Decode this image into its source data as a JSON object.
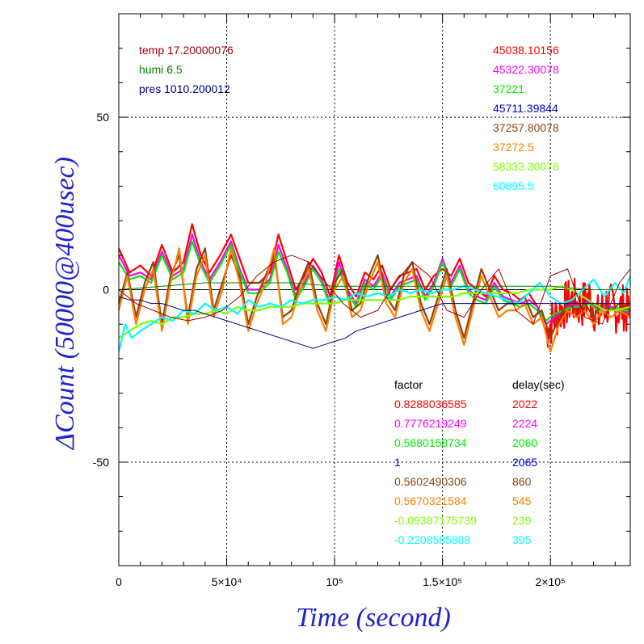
{
  "colors": {
    "red": "#ff0000",
    "magenta": "#ff00ff",
    "green": "#00ee00",
    "blue": "#0000cc",
    "brown": "#8b4513",
    "orange": "#ff7f00",
    "lime": "#7fff00",
    "cyan": "#00ffff",
    "darkred": "#a00000",
    "darkgreen": "#008000",
    "navy": "#000080",
    "axis_title": "#2222cc"
  },
  "chart_data": {
    "type": "line",
    "xlabel": "Time (second)",
    "ylabel": "ΔCount (50000@400usec)",
    "xlim": [
      0,
      237000
    ],
    "ylim": [
      -80,
      80
    ],
    "grid": true,
    "x_ticks": [
      {
        "value": 0,
        "label": "0"
      },
      {
        "value": 50000,
        "label": "5×10⁴"
      },
      {
        "value": 100000,
        "label": "10⁵"
      },
      {
        "value": 150000,
        "label": "1.5×10⁵"
      },
      {
        "value": 200000,
        "label": "2×10⁵"
      }
    ],
    "y_ticks": [
      {
        "value": 50,
        "label": "50"
      },
      {
        "value": 0,
        "label": "0"
      },
      {
        "value": -50,
        "label": "-50"
      }
    ],
    "env_legend": [
      {
        "name": "temp",
        "value": "17.20000076",
        "color": "#a00000"
      },
      {
        "name": "humi",
        "value": "6.5",
        "color": "#008000"
      },
      {
        "name": "pres",
        "value": "1010.200012",
        "color": "#000080"
      }
    ],
    "series_values": [
      {
        "value": "45038.10156",
        "color": "#ff0000"
      },
      {
        "value": "45322.30078",
        "color": "#ff00ff"
      },
      {
        "value": "37221",
        "color": "#00ee00"
      },
      {
        "value": "45711.39844",
        "color": "#0000cc"
      },
      {
        "value": "37257.80078",
        "color": "#8b4513"
      },
      {
        "value": "37272.5",
        "color": "#ff7f00"
      },
      {
        "value": "58333.30078",
        "color": "#7fff00"
      },
      {
        "value": "60895.5",
        "color": "#00ffff"
      }
    ],
    "factor_table": {
      "header_factor": "factor",
      "header_delay": "delay(sec)",
      "rows": [
        {
          "factor": "0.8288036585",
          "delay": "2022",
          "color": "#ff0000"
        },
        {
          "factor": "0.7776219249",
          "delay": "2224",
          "color": "#ff00ff"
        },
        {
          "factor": "0.5680158734",
          "delay": "2060",
          "color": "#00ee00"
        },
        {
          "factor": "1",
          "delay": "2065",
          "color": "#0000cc"
        },
        {
          "factor": "0.5602490306",
          "delay": "860",
          "color": "#8b4513"
        },
        {
          "factor": "0.5670321584",
          "delay": "545",
          "color": "#ff7f00"
        },
        {
          "factor": "-0.09387175739",
          "delay": "239",
          "color": "#7fff00"
        },
        {
          "factor": "-0.2208585888",
          "delay": "395",
          "color": "#00ffff"
        }
      ]
    },
    "series": [
      {
        "color": "#ff0000",
        "noise_after": 195000,
        "noise_amp": 7,
        "x": [
          0,
          5000,
          10000,
          15000,
          20000,
          25000,
          30000,
          34000,
          38000,
          42000,
          47000,
          52000,
          56000,
          60000,
          65000,
          70000,
          74000,
          78000,
          82000,
          86000,
          90000,
          94000,
          98000,
          102000,
          106000,
          110000,
          114000,
          118000,
          122000,
          126000,
          130000,
          134000,
          138000,
          142000,
          146000,
          150000,
          154000,
          158000,
          162000,
          166000,
          170000,
          174000,
          178000,
          182000,
          186000,
          190000,
          194000,
          198000,
          202000,
          206000,
          210000,
          214000,
          218000,
          222000,
          226000,
          230000,
          234000,
          237000
        ],
        "y": [
          12,
          5,
          7,
          4,
          13,
          5,
          8,
          19,
          10,
          5,
          10,
          16,
          9,
          2,
          2,
          5,
          16,
          8,
          0,
          4,
          9,
          5,
          -2,
          10,
          2,
          -2,
          5,
          3,
          7,
          0,
          4,
          5,
          6,
          0,
          4,
          6,
          4,
          9,
          2,
          0,
          -2,
          4,
          0,
          -1,
          -3,
          -1,
          -5,
          -12,
          -8,
          -5,
          -3,
          -5,
          -2,
          -8,
          -4,
          -6,
          -5,
          -8
        ]
      },
      {
        "color": "#ff00ff",
        "x": [
          0,
          5000,
          10000,
          15000,
          20000,
          25000,
          30000,
          34000,
          38000,
          42000,
          47000,
          52000,
          56000,
          60000,
          65000,
          70000,
          74000,
          78000,
          82000,
          86000,
          90000,
          94000,
          98000,
          102000,
          106000,
          110000,
          114000,
          118000,
          122000,
          126000,
          130000,
          134000,
          138000,
          142000,
          146000,
          150000,
          154000,
          158000,
          162000,
          166000,
          170000,
          174000,
          178000,
          182000,
          186000,
          190000,
          194000,
          198000,
          202000,
          206000,
          210000,
          214000,
          218000,
          222000,
          226000,
          230000,
          234000,
          237000
        ],
        "y": [
          10,
          4,
          5,
          3,
          11,
          4,
          6,
          16,
          8,
          3,
          8,
          14,
          6,
          0,
          0,
          3,
          13,
          6,
          -2,
          2,
          7,
          3,
          -4,
          8,
          0,
          -4,
          3,
          1,
          5,
          -2,
          2,
          3,
          4,
          -2,
          2,
          9,
          2,
          7,
          0,
          -2,
          -3,
          2,
          -2,
          -3,
          -4,
          -3,
          -5,
          -10,
          -8,
          -6,
          -4,
          -5,
          -3,
          -6,
          -5,
          -5,
          -6,
          -7
        ]
      },
      {
        "color": "#00ee00",
        "x": [
          0,
          5000,
          10000,
          15000,
          20000,
          25000,
          30000,
          34000,
          38000,
          42000,
          47000,
          52000,
          56000,
          60000,
          65000,
          70000,
          74000,
          78000,
          82000,
          86000,
          90000,
          94000,
          98000,
          102000,
          106000,
          110000,
          114000,
          118000,
          122000,
          126000,
          130000,
          134000,
          138000,
          142000,
          146000,
          150000,
          154000,
          158000,
          162000,
          166000,
          170000,
          174000,
          178000,
          182000,
          186000,
          190000,
          194000,
          198000,
          202000,
          206000,
          210000,
          214000,
          218000,
          222000,
          226000,
          230000,
          234000,
          237000
        ],
        "y": [
          8,
          3,
          4,
          2,
          10,
          3,
          5,
          14,
          7,
          2,
          7,
          13,
          5,
          -1,
          -1,
          2,
          11,
          5,
          -3,
          1,
          6,
          2,
          -5,
          6,
          -1,
          -5,
          2,
          0,
          4,
          -3,
          1,
          2,
          3,
          -3,
          1,
          8,
          1,
          6,
          -1,
          -3,
          -4,
          1,
          -3,
          -4,
          -5,
          -4,
          -6,
          -9,
          -7,
          -6,
          -5,
          -5,
          -4,
          -6,
          -6,
          -5,
          -6,
          -6
        ]
      },
      {
        "color": "#8b4513",
        "x": [
          0,
          4000,
          8000,
          12000,
          16000,
          20000,
          24000,
          28000,
          32000,
          36000,
          40000,
          44000,
          48000,
          52000,
          56000,
          60000,
          64000,
          68000,
          72000,
          76000,
          80000,
          84000,
          88000,
          92000,
          96000,
          100000,
          104000,
          108000,
          112000,
          116000,
          120000,
          124000,
          128000,
          132000,
          136000,
          140000,
          144000,
          148000,
          152000,
          156000,
          160000,
          164000,
          168000,
          172000,
          176000,
          180000,
          184000,
          188000,
          192000,
          196000,
          200000,
          204000,
          208000,
          212000,
          216000,
          220000,
          224000,
          228000,
          232000,
          237000
        ],
        "y": [
          -4,
          5,
          -8,
          2,
          8,
          -10,
          4,
          10,
          -8,
          6,
          12,
          -6,
          2,
          10,
          4,
          -10,
          -2,
          4,
          10,
          -8,
          -6,
          2,
          8,
          -4,
          -10,
          2,
          6,
          -6,
          -4,
          4,
          10,
          -2,
          -6,
          4,
          8,
          -4,
          -10,
          -2,
          6,
          -6,
          -14,
          -4,
          6,
          0,
          -6,
          -4,
          -4,
          -2,
          -8,
          -6,
          -14,
          -8,
          -4,
          -6,
          -4,
          -8,
          -4,
          -6,
          -4,
          -6
        ]
      },
      {
        "color": "#ff7f00",
        "x": [
          0,
          4000,
          8000,
          12000,
          16000,
          20000,
          24000,
          28000,
          32000,
          36000,
          40000,
          44000,
          48000,
          52000,
          56000,
          60000,
          64000,
          68000,
          72000,
          76000,
          80000,
          84000,
          88000,
          92000,
          96000,
          100000,
          104000,
          108000,
          112000,
          116000,
          120000,
          124000,
          128000,
          132000,
          136000,
          140000,
          144000,
          148000,
          152000,
          156000,
          160000,
          164000,
          168000,
          172000,
          176000,
          180000,
          184000,
          188000,
          192000,
          196000,
          200000,
          204000,
          208000,
          212000,
          216000,
          220000,
          224000,
          228000,
          232000,
          237000
        ],
        "y": [
          -6,
          4,
          -10,
          0,
          6,
          -12,
          2,
          12,
          -10,
          4,
          10,
          -8,
          0,
          12,
          2,
          -12,
          -4,
          2,
          12,
          -10,
          -8,
          0,
          6,
          -6,
          -12,
          0,
          4,
          -8,
          -6,
          2,
          8,
          -4,
          -8,
          2,
          6,
          -6,
          -12,
          -4,
          4,
          -8,
          -16,
          -6,
          4,
          -2,
          -8,
          -6,
          -6,
          -4,
          -10,
          -8,
          -18,
          -10,
          -6,
          -8,
          -6,
          -10,
          -6,
          -8,
          -6,
          -8
        ]
      },
      {
        "color": "#7fff00",
        "x": [
          0,
          5000,
          10000,
          15000,
          20000,
          25000,
          30000,
          35000,
          40000,
          45000,
          50000,
          55000,
          60000,
          65000,
          70000,
          75000,
          80000,
          85000,
          90000,
          95000,
          100000,
          105000,
          110000,
          115000,
          120000,
          125000,
          130000,
          135000,
          140000,
          145000,
          150000,
          155000,
          160000,
          165000,
          170000,
          175000,
          180000,
          185000,
          190000,
          195000,
          200000,
          205000,
          210000,
          215000,
          220000,
          225000,
          230000,
          237000
        ],
        "y": [
          -14,
          -12,
          -10,
          -9,
          -10,
          -8,
          -8,
          -7,
          -7,
          -6,
          -7,
          -5,
          -6,
          -6,
          -5,
          -5,
          -5,
          -4,
          -4,
          -4,
          -4,
          -3,
          -3,
          -3,
          -3,
          -3,
          -3,
          -2,
          -2,
          -2,
          -2,
          -2,
          -1,
          -1,
          -1,
          -1,
          -1,
          -1,
          0,
          0,
          0,
          1,
          0,
          -2,
          -4,
          -6,
          -6,
          -5
        ]
      },
      {
        "color": "#00ffff",
        "x": [
          0,
          3000,
          6000,
          10000,
          15000,
          20000,
          25000,
          30000,
          35000,
          40000,
          45000,
          50000,
          55000,
          60000,
          65000,
          70000,
          75000,
          80000,
          85000,
          90000,
          95000,
          100000,
          105000,
          110000,
          115000,
          120000,
          125000,
          130000,
          135000,
          140000,
          145000,
          150000,
          155000,
          160000,
          165000,
          170000,
          175000,
          180000,
          185000,
          190000,
          195000,
          200000,
          205000,
          210000,
          215000,
          220000,
          225000,
          230000,
          234000,
          237000
        ],
        "y": [
          -18,
          -10,
          -14,
          -12,
          -10,
          -8,
          -9,
          -6,
          -7,
          -4,
          -6,
          -5,
          -7,
          -3,
          -5,
          -4,
          -5,
          -3,
          -4,
          -3,
          -3,
          -2,
          -3,
          -1,
          -2,
          -1,
          -2,
          0,
          -1,
          0,
          -1,
          0,
          0,
          1,
          0,
          -1,
          -2,
          -3,
          -4,
          -1,
          2,
          -2,
          -4,
          -3,
          0,
          3,
          -2,
          2,
          -1,
          4
        ]
      },
      {
        "color": "#000080",
        "x": [
          0,
          5000,
          10000,
          15000,
          20000,
          25000,
          30000,
          35000,
          40000,
          45000,
          50000,
          55000,
          60000,
          65000,
          70000,
          75000,
          80000,
          85000,
          90000,
          95000,
          100000,
          105000,
          110000,
          115000,
          120000,
          125000,
          130000,
          135000,
          140000,
          145000,
          150000,
          155000,
          160000,
          165000,
          170000,
          175000,
          180000,
          185000,
          190000,
          195000,
          200000,
          205000,
          210000,
          215000,
          220000,
          225000,
          230000,
          237000
        ],
        "y": [
          -2,
          -3,
          -3,
          -4,
          -4,
          -5,
          -6,
          -6,
          -7,
          -8,
          -9,
          -10,
          -11,
          -12,
          -13,
          -14,
          -15,
          -16,
          -17,
          -16,
          -15,
          -14,
          -12,
          -11,
          -10,
          -9,
          -8,
          -7,
          -6,
          -5,
          -4,
          -4,
          -4,
          -4,
          -4,
          -4,
          -4,
          -4,
          -4,
          -4,
          -4,
          -4,
          -4,
          -4,
          -4,
          -4,
          -4,
          -4
        ]
      },
      {
        "color": "#a00000",
        "x": [
          0,
          8000,
          16000,
          24000,
          32000,
          40000,
          48000,
          56000,
          64000,
          72000,
          80000,
          88000,
          96000,
          104000,
          112000,
          120000,
          128000,
          136000,
          144000,
          152000,
          160000,
          168000,
          176000,
          184000,
          192000,
          200000,
          208000,
          216000,
          224000,
          232000,
          237000
        ],
        "y": [
          0,
          -4,
          -6,
          -8,
          -9,
          -8,
          -6,
          -2,
          4,
          8,
          10,
          8,
          2,
          -4,
          -8,
          -6,
          2,
          8,
          4,
          -6,
          -8,
          0,
          6,
          -6,
          -10,
          4,
          6,
          -8,
          -10,
          2,
          6
        ]
      },
      {
        "color": "#008000",
        "x": [
          0,
          20000,
          40000,
          60000,
          80000,
          100000,
          120000,
          140000,
          160000,
          180000,
          200000,
          220000,
          237000
        ],
        "y": [
          0,
          1,
          2,
          2,
          2,
          1,
          1,
          1,
          1,
          1,
          1,
          0,
          0
        ]
      }
    ]
  }
}
